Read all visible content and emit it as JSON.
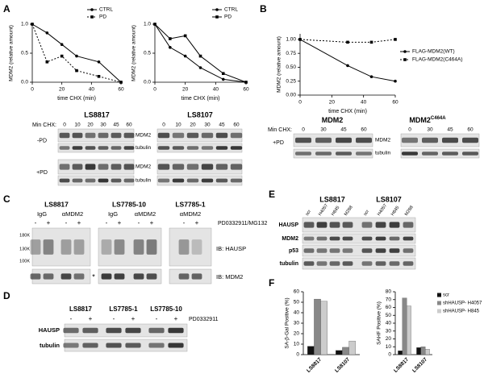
{
  "panel_letters": [
    "A",
    "B",
    "C",
    "D",
    "E",
    "F"
  ],
  "chart_data": [
    {
      "type": "line",
      "x_label": "time CHX (min)",
      "y_label": "MDM2 (relative amount)",
      "x": [
        0,
        10,
        20,
        30,
        45,
        60
      ],
      "xlim": [
        0,
        60
      ],
      "ylim": [
        0,
        1
      ],
      "xticks": [
        0,
        20,
        40,
        60
      ],
      "yticks": [
        {
          "value": 0,
          "label": "0.0"
        },
        {
          "value": 0.5,
          "label": "0.5"
        },
        {
          "value": 1,
          "label": "1.0"
        }
      ],
      "legend": "top-right",
      "series": [
        {
          "name": "CTRL",
          "color": "#000000",
          "marker": "circle",
          "line_style": "solid",
          "values": [
            1.0,
            0.85,
            0.65,
            0.45,
            0.35,
            0.0
          ]
        },
        {
          "name": "PD",
          "color": "#000000",
          "marker": "square",
          "line_style": "dotted",
          "values": [
            1.0,
            0.35,
            0.45,
            0.2,
            0.1,
            0.0
          ]
        }
      ]
    },
    {
      "type": "line",
      "x_label": "time CHX (min)",
      "y_label": "MDM2 (relative amount)",
      "x": [
        0,
        10,
        20,
        30,
        45,
        60
      ],
      "xlim": [
        0,
        60
      ],
      "ylim": [
        0,
        1
      ],
      "xticks": [
        0,
        20,
        40,
        60
      ],
      "yticks": [
        {
          "value": 0,
          "label": "0.0"
        },
        {
          "value": 0.5,
          "label": "0.5"
        },
        {
          "value": 1,
          "label": "1.0"
        }
      ],
      "legend": "top-right",
      "series": [
        {
          "name": "CTRL",
          "color": "#000000",
          "marker": "circle",
          "line_style": "solid",
          "values": [
            1.0,
            0.6,
            0.45,
            0.25,
            0.05,
            0.0
          ]
        },
        {
          "name": "PD",
          "color": "#000000",
          "marker": "square",
          "line_style": "solid",
          "values": [
            1.0,
            0.75,
            0.8,
            0.45,
            0.15,
            0.0
          ]
        }
      ]
    },
    {
      "type": "line",
      "x_label": "time CHX (min)",
      "y_label": "MDM2 (relative amount)",
      "x": [
        0,
        30,
        45,
        60
      ],
      "xlim": [
        0,
        60
      ],
      "ylim": [
        0,
        1.1
      ],
      "xticks": [
        0,
        20,
        40,
        60
      ],
      "yticks": [
        {
          "value": 0,
          "label": "0.00"
        },
        0.25,
        {
          "value": 0.5,
          "label": "0.50"
        },
        0.75,
        {
          "value": 1,
          "label": "1.00"
        }
      ],
      "legend": "right",
      "series": [
        {
          "name": "FLAG-MDM2(WT)",
          "color": "#000000",
          "marker": "circle",
          "line_style": "solid",
          "values": [
            1.0,
            0.53,
            0.33,
            0.25
          ]
        },
        {
          "name": "FLAG-MDM2(C464A)",
          "color": "#000000",
          "marker": "square",
          "line_style": "dotted",
          "values": [
            1.0,
            0.95,
            0.95,
            1.0
          ]
        }
      ]
    },
    {
      "type": "bar",
      "y_label": "SA-β-Gal Positive (%)",
      "categories": [
        "LS8817",
        "LS8107"
      ],
      "ylim": [
        0,
        60
      ],
      "yticks": [
        0,
        10,
        20,
        30,
        40,
        50,
        60
      ],
      "series": [
        {
          "color": "#111111",
          "values": [
            8,
            4
          ]
        },
        {
          "color": "#888888",
          "values": [
            53,
            7
          ]
        },
        {
          "color": "#cccccc",
          "values": [
            51,
            13
          ]
        }
      ]
    },
    {
      "type": "bar",
      "y_label": "SAHF Positive (%)",
      "categories": [
        "LS8817",
        "LS8107"
      ],
      "ylim": [
        0,
        80
      ],
      "yticks": [
        0,
        10,
        20,
        30,
        40,
        50,
        60,
        70,
        80
      ],
      "legend": "right",
      "series": [
        {
          "name": "scr",
          "color": "#111111",
          "values": [
            5,
            9
          ]
        },
        {
          "name": "shHAUSP- H4057",
          "color": "#888888",
          "values": [
            72,
            10
          ]
        },
        {
          "name": "shHAUSP- H845",
          "color": "#cccccc",
          "values": [
            62,
            7
          ]
        }
      ]
    }
  ],
  "a_blots": {
    "cell_lines": [
      "LS8817",
      "LS8107"
    ],
    "min_chx_label": "Min CHX:",
    "lanes": [
      "0",
      "10",
      "20",
      "30",
      "45",
      "60"
    ],
    "conditions": [
      "-PD",
      "+PD"
    ],
    "proteins": [
      "MDM2",
      "tubulin"
    ]
  },
  "b_blots": {
    "constructs": [
      {
        "name": "MDM2"
      },
      {
        "name": "MDM2",
        "superscript": "C464A"
      }
    ],
    "min_chx_label": "Min CHX:",
    "lanes": [
      "0",
      "30",
      "45",
      "60"
    ],
    "condition": "+PD",
    "proteins": [
      "MDM2",
      "tubulin"
    ]
  },
  "c_blots": {
    "cell_lines": [
      "LS8817",
      "LS7785-10",
      "LS7785-1"
    ],
    "antibodies": [
      "IgG",
      "αMDM2"
    ],
    "signs": [
      "-",
      "+"
    ],
    "treatment": "PD0332911/MG132",
    "markers": [
      "180K",
      "130K",
      "100K"
    ],
    "probes": [
      "IB: HAUSP",
      "IB: MDM2"
    ],
    "asterisk": "*"
  },
  "d_blots": {
    "cell_lines": [
      "LS8817",
      "LS7785-1",
      "LS7785-10"
    ],
    "signs": [
      "-",
      "+"
    ],
    "treatment": "PD0332911",
    "proteins": [
      "HAUSP",
      "tubulin"
    ]
  },
  "e_blots": {
    "cell_lines": [
      "LS8817",
      "LS8107"
    ],
    "lanes": [
      "scr",
      "H4057",
      "H845",
      "M288"
    ],
    "proteins": [
      "HAUSP",
      "MDM2",
      "p53",
      "tubulin"
    ]
  }
}
